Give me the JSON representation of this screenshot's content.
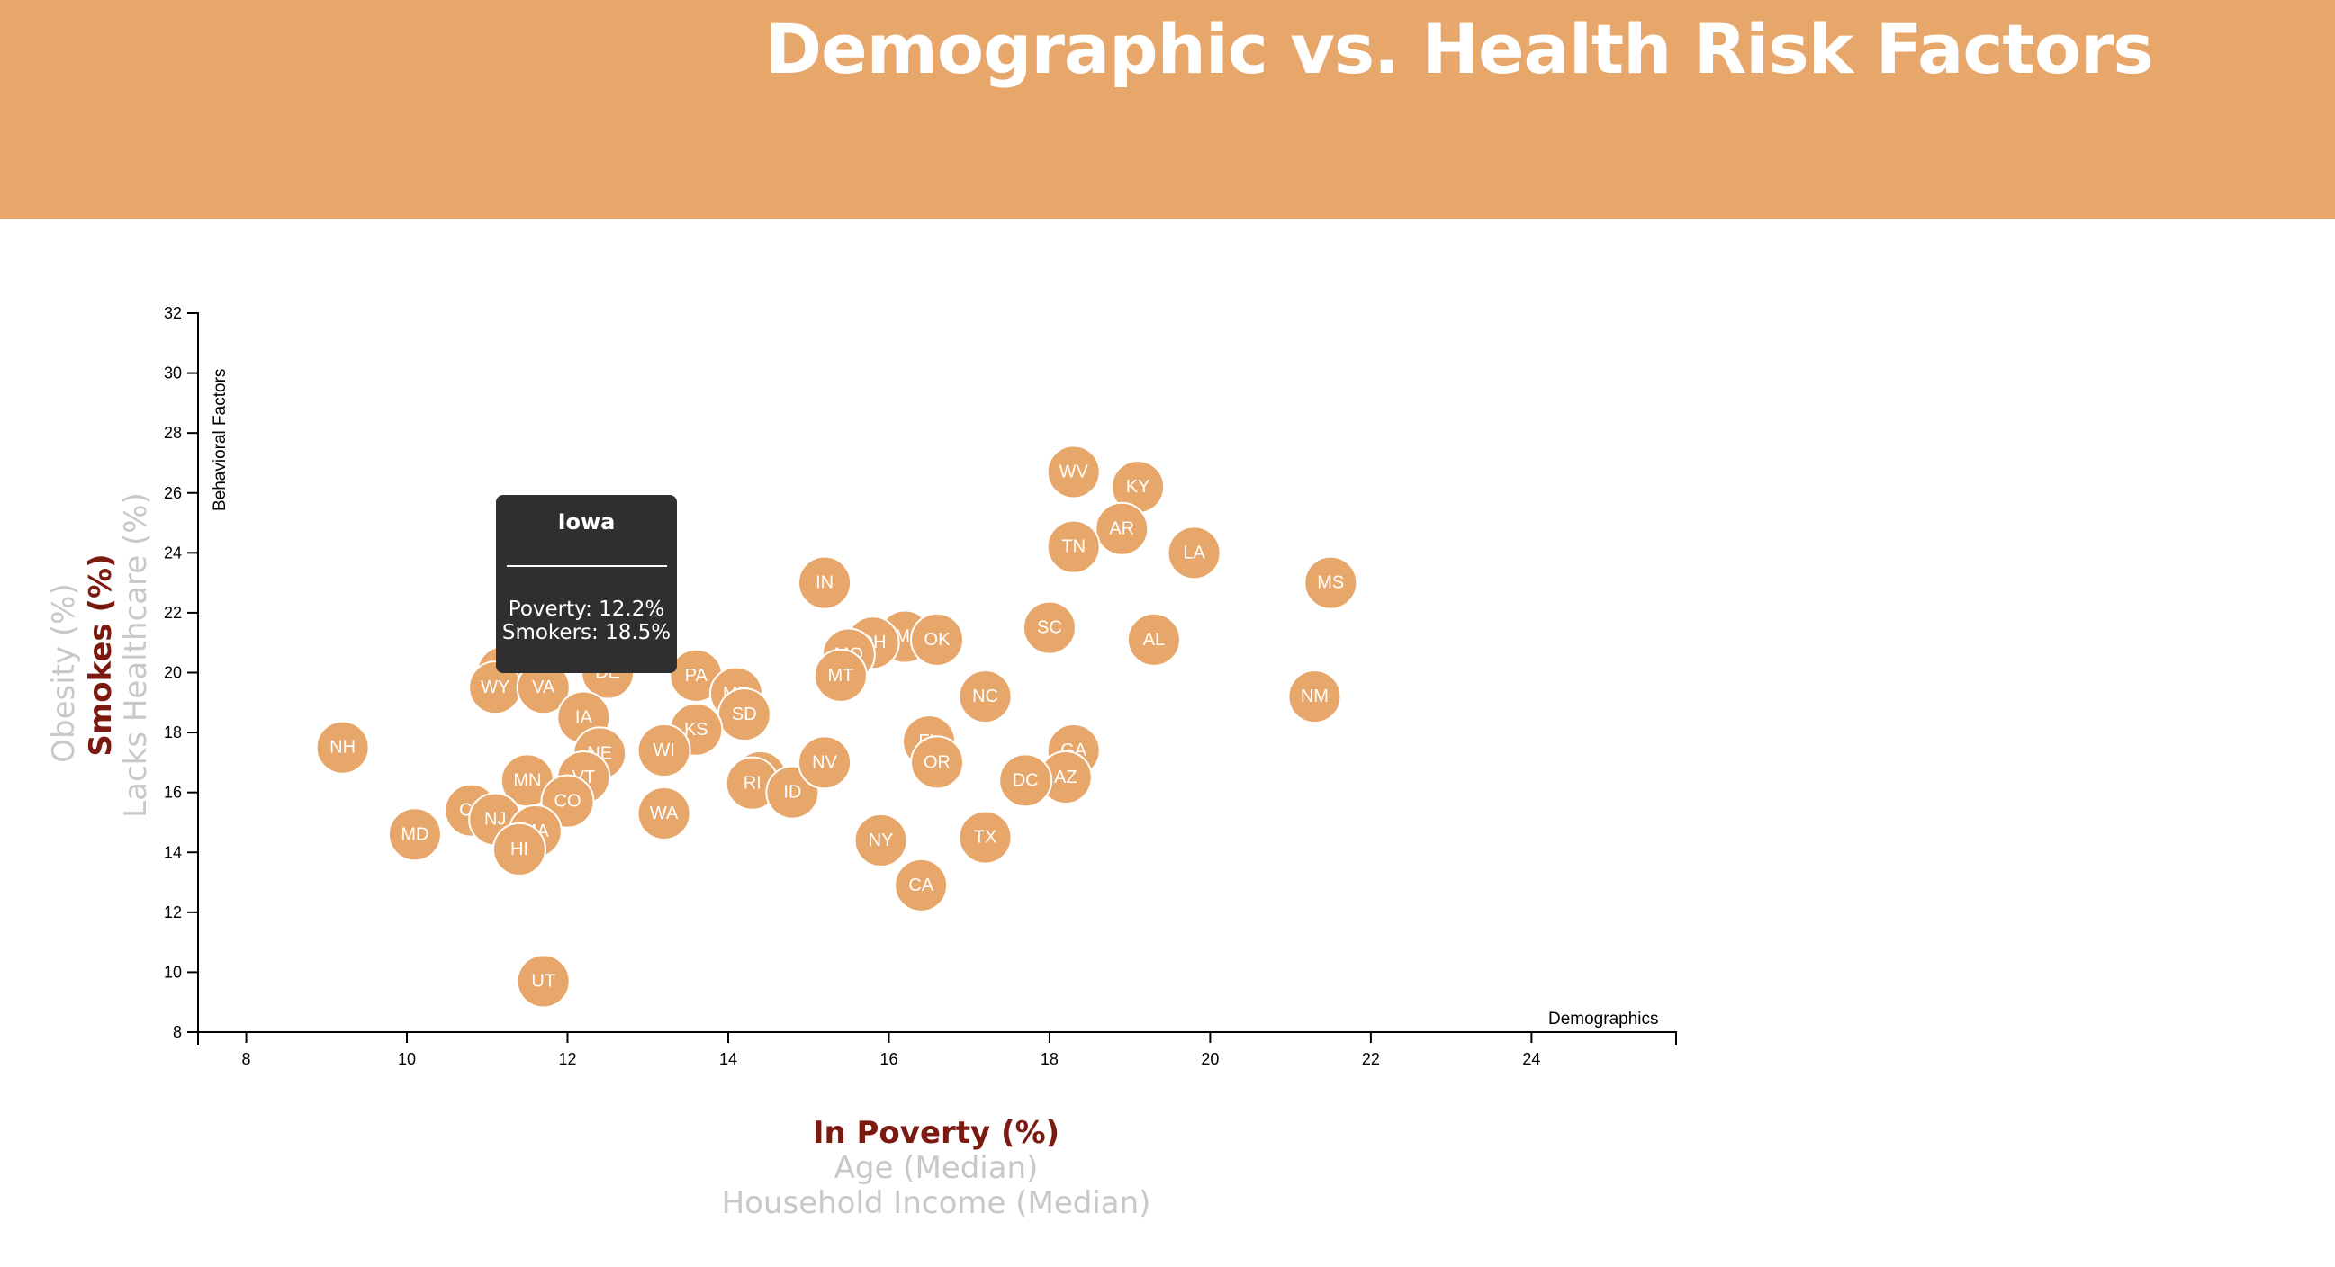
{
  "page": {
    "title": "Demographic vs. Health Risk Factors"
  },
  "axes": {
    "x_options": [
      {
        "label": "In Poverty (%)",
        "active": true
      },
      {
        "label": "Age (Median)",
        "active": false
      },
      {
        "label": "Household Income (Median)",
        "active": false
      }
    ],
    "y_options": [
      {
        "label": "Smokes (%)",
        "active": true
      },
      {
        "label": "Lacks Healthcare (%)",
        "active": false
      },
      {
        "label": "Obesity (%)",
        "active": false
      }
    ],
    "x_inner_label": "Demographics",
    "y_inner_label": "Behavioral Factors"
  },
  "tooltip": {
    "state": "Iowa",
    "line1": "Poverty: 12.2%",
    "line2": "Smokers: 18.5%"
  },
  "chart_data": {
    "type": "scatter",
    "xlabel": "In Poverty (%)",
    "ylabel": "Smokes (%)",
    "xlim": [
      7.4,
      25.8
    ],
    "ylim": [
      8,
      32
    ],
    "x_ticks": [
      8,
      10,
      12,
      14,
      16,
      18,
      20,
      22,
      24
    ],
    "y_ticks": [
      8,
      10,
      12,
      14,
      16,
      18,
      20,
      22,
      24,
      26,
      28,
      30,
      32
    ],
    "points": [
      {
        "abbr": "WV",
        "x": 18.3,
        "y": 26.7
      },
      {
        "abbr": "KY",
        "x": 19.1,
        "y": 26.2
      },
      {
        "abbr": "AR",
        "x": 18.9,
        "y": 24.8
      },
      {
        "abbr": "TN",
        "x": 18.3,
        "y": 24.2
      },
      {
        "abbr": "LA",
        "x": 19.8,
        "y": 24.0
      },
      {
        "abbr": "MS",
        "x": 21.5,
        "y": 23.0
      },
      {
        "abbr": "IN",
        "x": 15.2,
        "y": 23.0
      },
      {
        "abbr": "SC",
        "x": 18.0,
        "y": 21.5
      },
      {
        "abbr": "AL",
        "x": 19.3,
        "y": 21.1
      },
      {
        "abbr": "MI",
        "x": 16.2,
        "y": 21.2
      },
      {
        "abbr": "OK",
        "x": 16.6,
        "y": 21.1
      },
      {
        "abbr": "OH",
        "x": 15.8,
        "y": 21.0
      },
      {
        "abbr": "MO",
        "x": 15.5,
        "y": 20.6
      },
      {
        "abbr": "MT",
        "x": 15.4,
        "y": 19.9
      },
      {
        "abbr": "NC",
        "x": 17.2,
        "y": 19.2
      },
      {
        "abbr": "NM",
        "x": 21.3,
        "y": 19.2
      },
      {
        "abbr": "PA",
        "x": 13.6,
        "y": 19.9
      },
      {
        "abbr": "ME",
        "x": 14.1,
        "y": 19.3
      },
      {
        "abbr": "SD",
        "x": 14.2,
        "y": 18.6
      },
      {
        "abbr": "KS",
        "x": 13.6,
        "y": 18.1
      },
      {
        "abbr": "DE",
        "x": 12.5,
        "y": 20.0
      },
      {
        "abbr": "ND",
        "x": 11.4,
        "y": 20.0
      },
      {
        "abbr": "AK",
        "x": 11.2,
        "y": 20.0
      },
      {
        "abbr": "WY",
        "x": 11.1,
        "y": 19.5
      },
      {
        "abbr": "VA",
        "x": 11.7,
        "y": 19.5
      },
      {
        "abbr": "IA",
        "x": 12.2,
        "y": 18.5
      },
      {
        "abbr": "NH",
        "x": 9.2,
        "y": 17.5
      },
      {
        "abbr": "NE",
        "x": 12.4,
        "y": 17.3
      },
      {
        "abbr": "WI",
        "x": 13.2,
        "y": 17.4
      },
      {
        "abbr": "VT",
        "x": 12.2,
        "y": 16.5
      },
      {
        "abbr": "MN",
        "x": 11.5,
        "y": 16.4
      },
      {
        "abbr": "CO",
        "x": 12.0,
        "y": 15.7
      },
      {
        "abbr": "CT",
        "x": 10.8,
        "y": 15.4
      },
      {
        "abbr": "NJ",
        "x": 11.1,
        "y": 15.1
      },
      {
        "abbr": "MA",
        "x": 11.6,
        "y": 14.7
      },
      {
        "abbr": "HI",
        "x": 11.4,
        "y": 14.1
      },
      {
        "abbr": "MD",
        "x": 10.1,
        "y": 14.6
      },
      {
        "abbr": "WA",
        "x": 13.2,
        "y": 15.3
      },
      {
        "abbr": "IL",
        "x": 14.4,
        "y": 16.5
      },
      {
        "abbr": "RI",
        "x": 14.3,
        "y": 16.3
      },
      {
        "abbr": "ID",
        "x": 14.8,
        "y": 16.0
      },
      {
        "abbr": "NV",
        "x": 15.2,
        "y": 17.0
      },
      {
        "abbr": "FL",
        "x": 16.5,
        "y": 17.7
      },
      {
        "abbr": "OR",
        "x": 16.6,
        "y": 17.0
      },
      {
        "abbr": "GA",
        "x": 18.3,
        "y": 17.4
      },
      {
        "abbr": "AZ",
        "x": 18.2,
        "y": 16.5
      },
      {
        "abbr": "DC",
        "x": 17.7,
        "y": 16.4
      },
      {
        "abbr": "NY",
        "x": 15.9,
        "y": 14.4
      },
      {
        "abbr": "TX",
        "x": 17.2,
        "y": 14.5
      },
      {
        "abbr": "CA",
        "x": 16.4,
        "y": 12.9
      },
      {
        "abbr": "UT",
        "x": 11.7,
        "y": 9.7
      }
    ]
  }
}
